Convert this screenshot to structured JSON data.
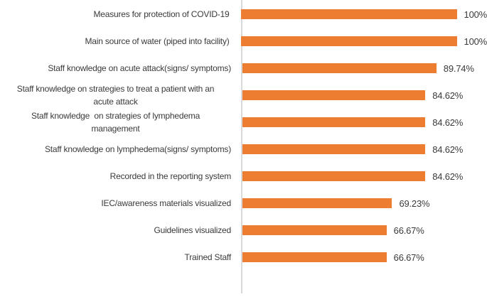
{
  "chart_data": {
    "type": "bar",
    "orientation": "horizontal",
    "title": "",
    "xlabel": "",
    "ylabel": "",
    "xlim": [
      0,
      100
    ],
    "grid": false,
    "legend": null,
    "bar_color": "#ed7d31",
    "axis_line_color": "#d9d9d9",
    "categories": [
      "Measures for protection of COVID-19",
      "Main source of water (piped into facility)",
      "Staff knowledge on acute attack(signs/ symptoms)",
      "Staff knowledge on strategies to treat a patient with an\nacute attack",
      "Staff knowledge  on strategies of lymphedema\nmanagement",
      "Staff knowledge on lymphedema(signs/ symptoms)",
      "Recorded in the reporting system",
      "IEC/awareness materials visualized",
      "Guidelines visualized",
      "Trained Staff"
    ],
    "values": [
      100,
      100,
      89.74,
      84.62,
      84.62,
      84.62,
      84.62,
      69.23,
      66.67,
      66.67
    ],
    "value_labels": [
      "100%",
      "100%",
      "89.74%",
      "84.62%",
      "84.62%",
      "84.62%",
      "84.62%",
      "69.23%",
      "66.67%",
      "66.67%"
    ]
  }
}
